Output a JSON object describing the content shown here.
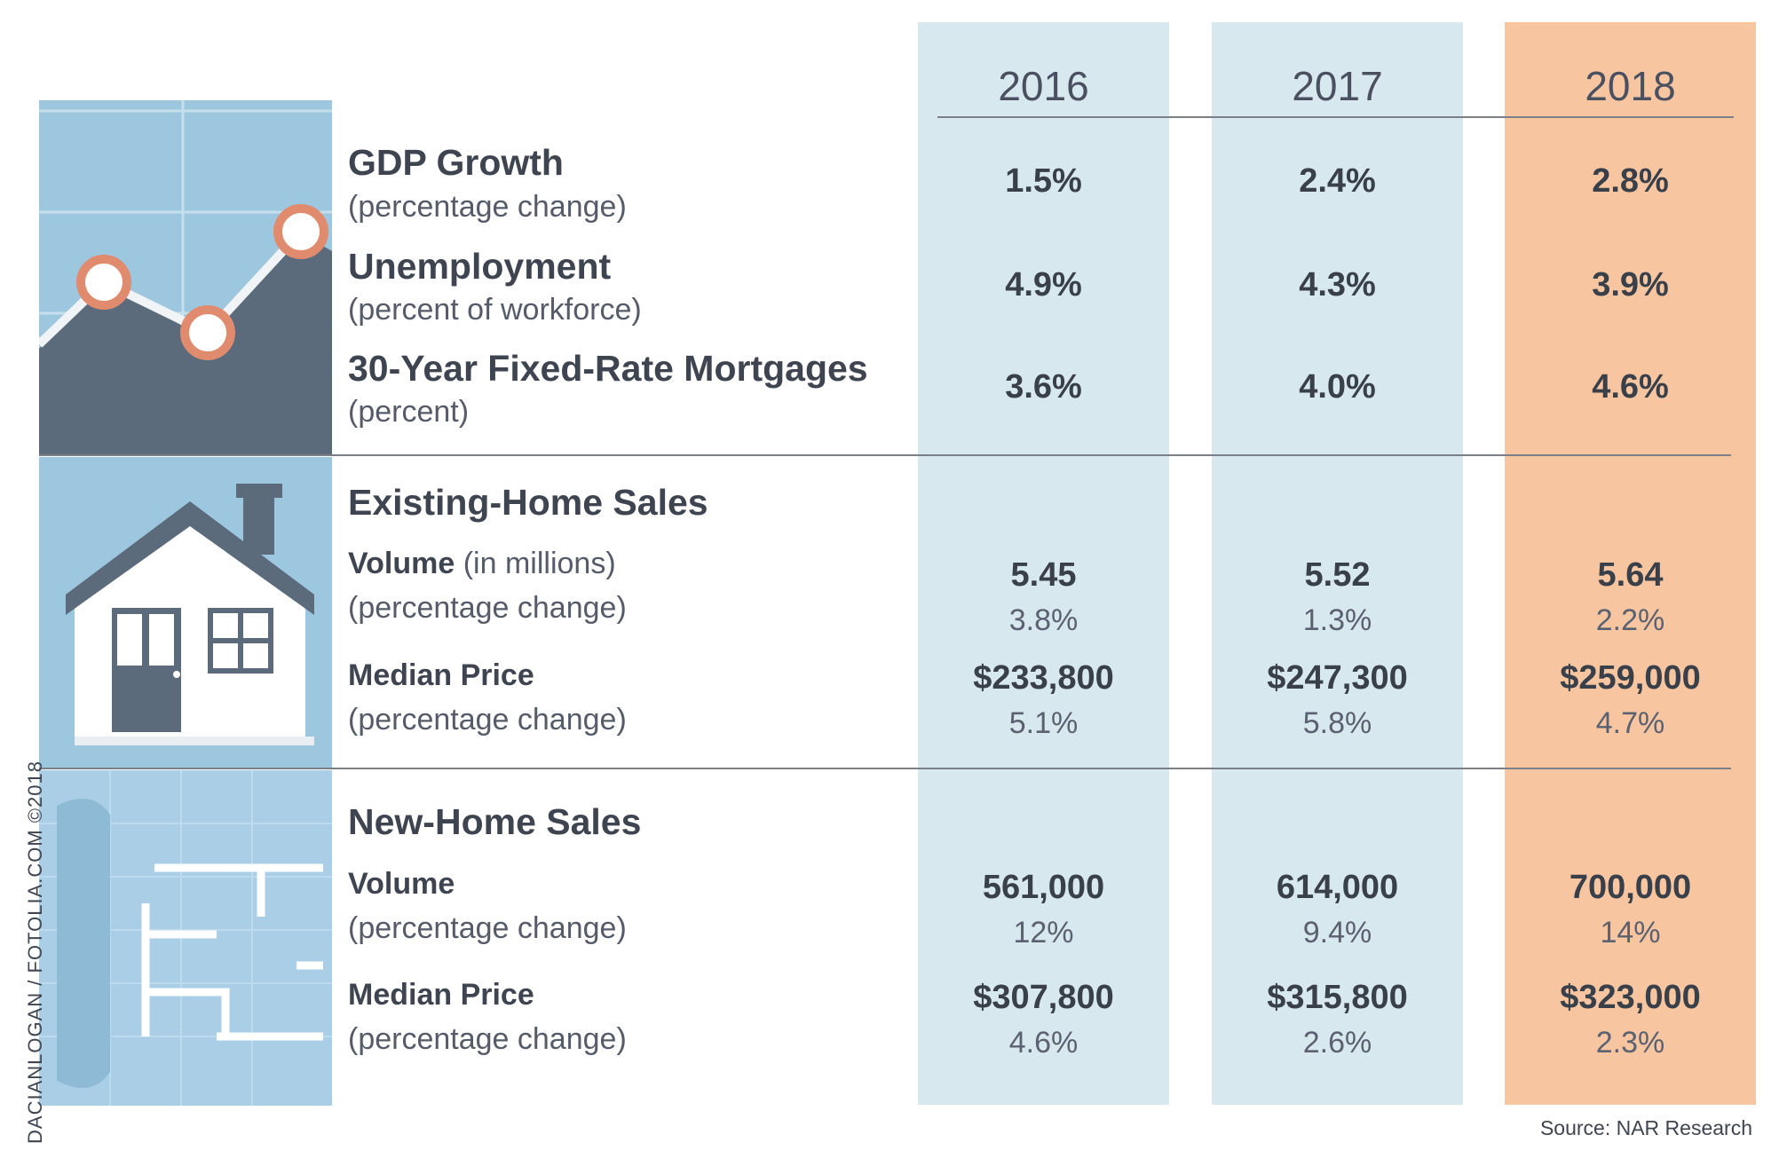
{
  "chart_data": {
    "type": "table",
    "columns": [
      "2016",
      "2017",
      "2018"
    ],
    "rows": [
      {
        "label": "GDP Growth",
        "sublabel": "(percentage change)",
        "values": [
          "1.5%",
          "2.4%",
          "2.8%"
        ]
      },
      {
        "label": "Unemployment",
        "sublabel": "(percent of workforce)",
        "values": [
          "4.9%",
          "4.3%",
          "3.9%"
        ]
      },
      {
        "label": "30-Year Fixed-Rate Mortgages",
        "sublabel": "(percent)",
        "values": [
          "3.6%",
          "4.0%",
          "4.6%"
        ]
      }
    ],
    "sections": [
      {
        "title": "Existing-Home Sales",
        "volume": {
          "label": "Volume",
          "label_suffix": "(in millions)",
          "sublabel": "(percentage change)",
          "values": [
            "5.45",
            "5.52",
            "5.64"
          ],
          "changes": [
            "3.8%",
            "1.3%",
            "2.2%"
          ]
        },
        "median": {
          "label": "Median Price",
          "sublabel": "(percentage change)",
          "values": [
            "$233,800",
            "$247,300",
            "$259,000"
          ],
          "changes": [
            "5.1%",
            "5.8%",
            "4.7%"
          ]
        }
      },
      {
        "title": "New-Home Sales",
        "volume": {
          "label": "Volume",
          "label_suffix": "",
          "sublabel": "(percentage change)",
          "values": [
            "561,000",
            "614,000",
            "700,000"
          ],
          "changes": [
            "12%",
            "9.4%",
            "14%"
          ]
        },
        "median": {
          "label": "Median Price",
          "sublabel": "(percentage change)",
          "values": [
            "$307,800",
            "$315,800",
            "$323,000"
          ],
          "changes": [
            "4.6%",
            "2.6%",
            "2.3%"
          ]
        }
      }
    ],
    "highlight_column": "2018",
    "colors": {
      "column_bg": "#d8e8ef",
      "highlight_bg": "#f7c6a1",
      "illustration_blue": "#9dc6df",
      "accent": "#e08a6e",
      "dark": "#5a6877"
    }
  },
  "credit": "DACIANLOGAN / FOTOLIA.COM ©2018",
  "source": "Source: NAR Research",
  "icons": [
    "line-chart-illustration",
    "house-illustration",
    "blueprint-illustration"
  ]
}
